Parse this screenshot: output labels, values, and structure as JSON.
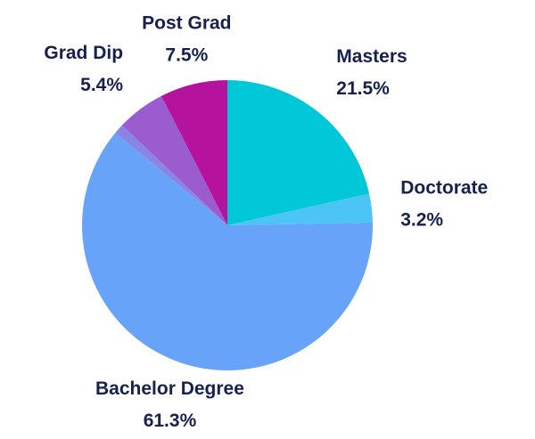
{
  "chart_data": {
    "type": "pie",
    "categories": [
      "Masters",
      "Doctorate",
      "Bachelor Degree",
      null,
      "Grad Dip",
      "Post Grad"
    ],
    "values": [
      21.5,
      3.2,
      61.3,
      1.1,
      5.4,
      7.5
    ],
    "value_labels": [
      "21.5%",
      "3.2%",
      "61.3%",
      null,
      "5.4%",
      "7.5%"
    ],
    "colors": [
      "#00c8d9",
      "#4cc4f6",
      "#67a3f8",
      "#8a84e6",
      "#9b5ccf",
      "#b5139e"
    ]
  }
}
